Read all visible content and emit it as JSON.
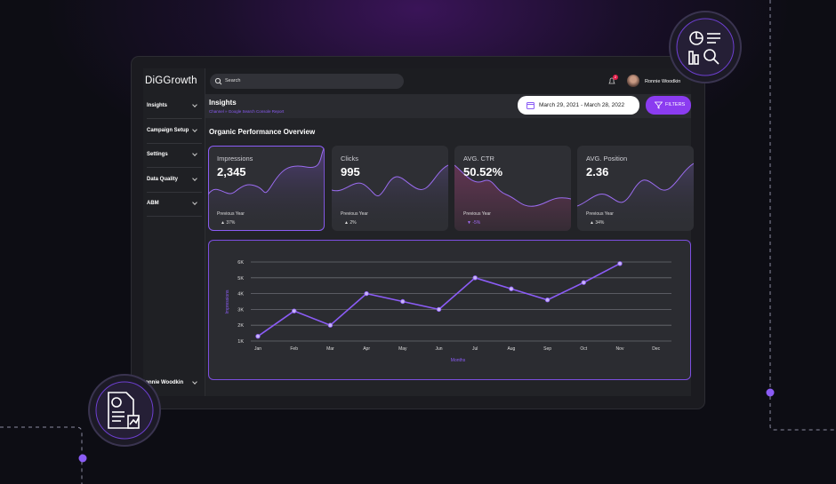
{
  "brand": "DiGGrowth",
  "topbar": {
    "search": "Search",
    "notifications": "2",
    "user": "Ronnie Woodkin"
  },
  "sidebar": {
    "items": [
      "Insights",
      "Campaign Setup",
      "Settings",
      "Data Quality",
      "ABM"
    ],
    "footer_user": "Ronnie Woodkin"
  },
  "header": {
    "title": "Insights",
    "breadcrumb": "Channel » Google Search Console Report",
    "date_range": "March 29, 2021 - March 28, 2022",
    "filters": "FILTERS"
  },
  "section_title": "Organic Performance Overview",
  "cards": [
    {
      "label": "Impressions",
      "value": "2,345",
      "compare": "Previous Year",
      "change": "▲ 37%"
    },
    {
      "label": "Clicks",
      "value": "995",
      "compare": "Previous Year",
      "change": "▲ 2%"
    },
    {
      "label": "AVG. CTR",
      "value": "50.52%",
      "compare": "Previous Year",
      "change": "▼ -5%"
    },
    {
      "label": "AVG. Position",
      "value": "2.36",
      "compare": "Previous Year",
      "change": "▲ 34%"
    }
  ],
  "chart_data": {
    "type": "line",
    "y_label": "Impressions",
    "x_label": "Months",
    "categories": [
      "Jan",
      "Feb",
      "Mar",
      "Apr",
      "May",
      "Jun",
      "Jul",
      "Aug",
      "Sep",
      "Oct",
      "Nov",
      "Dec"
    ],
    "values": [
      1300,
      2900,
      2000,
      4000,
      3500,
      3000,
      5000,
      4300,
      3600,
      4700,
      5900,
      null
    ],
    "color": "#8b5cf6",
    "ylim": [
      1000,
      6000
    ],
    "yticks": [
      {
        "value": 1000,
        "label": "1K"
      },
      {
        "value": 2000,
        "label": "2K"
      },
      {
        "value": 3000,
        "label": "3K"
      },
      {
        "value": 4000,
        "label": "4K"
      },
      {
        "value": 5000,
        "label": "5K"
      },
      {
        "value": 6000,
        "label": "6K"
      }
    ],
    "grid": true
  }
}
